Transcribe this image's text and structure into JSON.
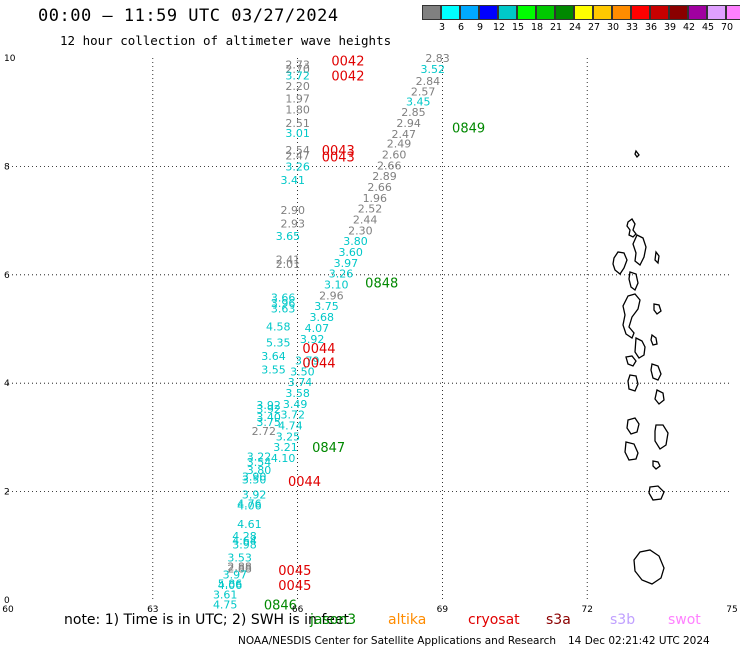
{
  "header": {
    "title": "00:00 — 11:59 UTC 03/27/2024",
    "subtitle": "12 hour collection of altimeter wave heights"
  },
  "color_scale": {
    "unit": "(ft)",
    "colors": [
      "#808080",
      "#00ffff",
      "#00aaff",
      "#0000ff",
      "#00c8c8",
      "#00ff00",
      "#00c800",
      "#008800",
      "#ffff00",
      "#ffc800",
      "#ff8c00",
      "#ff0000",
      "#c80000",
      "#8b0000",
      "#a000a0",
      "#e0a0ff",
      "#ff80ff",
      "#000000"
    ],
    "labels": [
      "3",
      "6",
      "9",
      "12",
      "15",
      "18",
      "21",
      "24",
      "27",
      "30",
      "33",
      "36",
      "39",
      "42",
      "45",
      "70"
    ]
  },
  "axes": {
    "x_labels": [
      "60",
      "63",
      "66",
      "69",
      "72",
      "75"
    ],
    "y_labels": [
      "0",
      "2",
      "4",
      "6",
      "8",
      "10"
    ]
  },
  "chart_data": {
    "type": "scatter",
    "x_range": [
      60,
      75
    ],
    "y_range": [
      0,
      10
    ],
    "grid": true,
    "wave_heights": [
      {
        "x": 66.0,
        "y": 9.88,
        "v": "2.73",
        "c": "#808080"
      },
      {
        "x": 66.0,
        "y": 9.8,
        "v": "2.70",
        "c": "#808080"
      },
      {
        "x": 66.0,
        "y": 9.68,
        "v": "3.72",
        "c": "#00c8c8"
      },
      {
        "x": 66.0,
        "y": 9.48,
        "v": "2.20",
        "c": "#808080"
      },
      {
        "x": 66.0,
        "y": 9.25,
        "v": "1.97",
        "c": "#808080"
      },
      {
        "x": 66.0,
        "y": 9.05,
        "v": "1.80",
        "c": "#808080"
      },
      {
        "x": 66.0,
        "y": 8.8,
        "v": "2.51",
        "c": "#808080"
      },
      {
        "x": 66.0,
        "y": 8.62,
        "v": "3.01",
        "c": "#00c8c8"
      },
      {
        "x": 66.0,
        "y": 8.3,
        "v": "2.54",
        "c": "#808080"
      },
      {
        "x": 66.0,
        "y": 8.2,
        "v": "2.47",
        "c": "#808080"
      },
      {
        "x": 66.0,
        "y": 8.0,
        "v": "3.26",
        "c": "#00c8c8"
      },
      {
        "x": 65.9,
        "y": 7.75,
        "v": "3.41",
        "c": "#00c8c8"
      },
      {
        "x": 65.9,
        "y": 7.2,
        "v": "2.90",
        "c": "#808080"
      },
      {
        "x": 65.9,
        "y": 6.95,
        "v": "2.93",
        "c": "#808080"
      },
      {
        "x": 65.8,
        "y": 6.72,
        "v": "3.65",
        "c": "#00c8c8"
      },
      {
        "x": 65.8,
        "y": 6.28,
        "v": "2.41",
        "c": "#808080"
      },
      {
        "x": 65.8,
        "y": 6.2,
        "v": "2.01",
        "c": "#808080"
      },
      {
        "x": 65.7,
        "y": 5.58,
        "v": "3.66",
        "c": "#00c8c8"
      },
      {
        "x": 65.7,
        "y": 5.48,
        "v": "3.96",
        "c": "#00c8c8"
      },
      {
        "x": 65.7,
        "y": 5.38,
        "v": "3.63",
        "c": "#00c8c8"
      },
      {
        "x": 65.6,
        "y": 5.05,
        "v": "4.58",
        "c": "#00c8c8"
      },
      {
        "x": 65.6,
        "y": 4.75,
        "v": "5.35",
        "c": "#00c8c8"
      },
      {
        "x": 65.5,
        "y": 4.5,
        "v": "3.64",
        "c": "#00c8c8"
      },
      {
        "x": 65.5,
        "y": 4.25,
        "v": "3.55",
        "c": "#00c8c8"
      },
      {
        "x": 65.4,
        "y": 3.6,
        "v": "3.92",
        "c": "#00c8c8"
      },
      {
        "x": 65.4,
        "y": 3.52,
        "v": "3.92",
        "c": "#00c8c8"
      },
      {
        "x": 65.4,
        "y": 3.38,
        "v": "3.40",
        "c": "#00c8c8"
      },
      {
        "x": 65.4,
        "y": 3.28,
        "v": "3.75",
        "c": "#00c8c8"
      },
      {
        "x": 65.3,
        "y": 3.12,
        "v": "2.72",
        "c": "#808080"
      },
      {
        "x": 65.2,
        "y": 2.65,
        "v": "3.22",
        "c": "#00c8c8"
      },
      {
        "x": 65.2,
        "y": 2.55,
        "v": "3.54",
        "c": "#00c8c8"
      },
      {
        "x": 65.2,
        "y": 2.4,
        "v": "3.80",
        "c": "#00c8c8"
      },
      {
        "x": 65.1,
        "y": 2.28,
        "v": "3.90",
        "c": "#00c8c8"
      },
      {
        "x": 65.1,
        "y": 2.22,
        "v": "3.50",
        "c": "#00c8c8"
      },
      {
        "x": 65.1,
        "y": 1.95,
        "v": "3.92",
        "c": "#00c8c8"
      },
      {
        "x": 65.0,
        "y": 1.78,
        "v": "4.76",
        "c": "#00c8c8"
      },
      {
        "x": 65.0,
        "y": 1.74,
        "v": "4.06",
        "c": "#00c8c8"
      },
      {
        "x": 65.0,
        "y": 1.4,
        "v": "4.61",
        "c": "#00c8c8"
      },
      {
        "x": 64.9,
        "y": 1.18,
        "v": "4.28",
        "c": "#00c8c8"
      },
      {
        "x": 64.9,
        "y": 1.1,
        "v": "4.64",
        "c": "#00c8c8"
      },
      {
        "x": 64.9,
        "y": 1.02,
        "v": "3.98",
        "c": "#00c8c8"
      },
      {
        "x": 64.8,
        "y": 0.78,
        "v": "3.53",
        "c": "#00c8c8"
      },
      {
        "x": 64.8,
        "y": 0.62,
        "v": "2.88",
        "c": "#808080"
      },
      {
        "x": 64.8,
        "y": 0.58,
        "v": "2.88",
        "c": "#808080"
      },
      {
        "x": 64.7,
        "y": 0.47,
        "v": "3.97",
        "c": "#00c8c8"
      },
      {
        "x": 64.6,
        "y": 0.3,
        "v": "5.86",
        "c": "#00c8c8"
      },
      {
        "x": 64.6,
        "y": 0.28,
        "v": "4.06",
        "c": "#00c8c8"
      },
      {
        "x": 64.5,
        "y": 0.1,
        "v": "3.61",
        "c": "#00c8c8"
      },
      {
        "x": 64.5,
        "y": -0.08,
        "v": "4.75",
        "c": "#00c8c8"
      },
      {
        "x": 68.9,
        "y": 10.0,
        "v": "2.83",
        "c": "#808080"
      },
      {
        "x": 68.8,
        "y": 9.8,
        "v": "3.52",
        "c": "#00c8c8"
      },
      {
        "x": 68.7,
        "y": 9.58,
        "v": "2.84",
        "c": "#808080"
      },
      {
        "x": 68.6,
        "y": 9.38,
        "v": "2.57",
        "c": "#808080"
      },
      {
        "x": 68.5,
        "y": 9.2,
        "v": "3.45",
        "c": "#00c8c8"
      },
      {
        "x": 68.4,
        "y": 9.0,
        "v": "2.85",
        "c": "#808080"
      },
      {
        "x": 68.3,
        "y": 8.8,
        "v": "2.94",
        "c": "#808080"
      },
      {
        "x": 68.2,
        "y": 8.6,
        "v": "2.47",
        "c": "#808080"
      },
      {
        "x": 68.1,
        "y": 8.42,
        "v": "2.49",
        "c": "#808080"
      },
      {
        "x": 68.0,
        "y": 8.22,
        "v": "2.60",
        "c": "#808080"
      },
      {
        "x": 67.9,
        "y": 8.02,
        "v": "2.66",
        "c": "#808080"
      },
      {
        "x": 67.8,
        "y": 7.82,
        "v": "2.89",
        "c": "#808080"
      },
      {
        "x": 67.7,
        "y": 7.62,
        "v": "2.66",
        "c": "#808080"
      },
      {
        "x": 67.6,
        "y": 7.42,
        "v": "1.96",
        "c": "#808080"
      },
      {
        "x": 67.5,
        "y": 7.22,
        "v": "2.52",
        "c": "#808080"
      },
      {
        "x": 67.4,
        "y": 7.02,
        "v": "2.44",
        "c": "#808080"
      },
      {
        "x": 67.3,
        "y": 6.82,
        "v": "2.30",
        "c": "#808080"
      },
      {
        "x": 67.2,
        "y": 6.62,
        "v": "3.80",
        "c": "#00c8c8"
      },
      {
        "x": 67.1,
        "y": 6.42,
        "v": "3.60",
        "c": "#00c8c8"
      },
      {
        "x": 67.0,
        "y": 6.22,
        "v": "3.97",
        "c": "#00c8c8"
      },
      {
        "x": 66.9,
        "y": 6.02,
        "v": "3.26",
        "c": "#00c8c8"
      },
      {
        "x": 66.8,
        "y": 5.82,
        "v": "3.10",
        "c": "#00c8c8"
      },
      {
        "x": 66.7,
        "y": 5.62,
        "v": "2.96",
        "c": "#808080"
      },
      {
        "x": 66.6,
        "y": 5.42,
        "v": "3.75",
        "c": "#00c8c8"
      },
      {
        "x": 66.5,
        "y": 5.22,
        "v": "3.68",
        "c": "#00c8c8"
      },
      {
        "x": 66.4,
        "y": 5.02,
        "v": "4.07",
        "c": "#00c8c8"
      },
      {
        "x": 66.3,
        "y": 4.82,
        "v": "3.92",
        "c": "#00c8c8"
      },
      {
        "x": 66.2,
        "y": 4.42,
        "v": "3.79",
        "c": "#00c8c8"
      },
      {
        "x": 66.1,
        "y": 4.22,
        "v": "3.50",
        "c": "#00c8c8"
      },
      {
        "x": 66.05,
        "y": 4.02,
        "v": "3.74",
        "c": "#00c8c8"
      },
      {
        "x": 66.0,
        "y": 3.82,
        "v": "3.58",
        "c": "#00c8c8"
      },
      {
        "x": 65.95,
        "y": 3.62,
        "v": "3.49",
        "c": "#00c8c8"
      },
      {
        "x": 65.9,
        "y": 3.42,
        "v": "3.72",
        "c": "#00c8c8"
      },
      {
        "x": 65.85,
        "y": 3.22,
        "v": "4.74",
        "c": "#00c8c8"
      },
      {
        "x": 65.8,
        "y": 3.02,
        "v": "3.25",
        "c": "#00c8c8"
      },
      {
        "x": 65.75,
        "y": 2.82,
        "v": "3.21",
        "c": "#00c8c8"
      },
      {
        "x": 65.7,
        "y": 2.62,
        "v": "4.10",
        "c": "#00c8c8"
      }
    ],
    "passes": [
      {
        "x": 66.7,
        "y": 9.95,
        "label": "0042",
        "c": "#e00000"
      },
      {
        "x": 66.7,
        "y": 9.68,
        "label": "0042",
        "c": "#e00000"
      },
      {
        "x": 69.2,
        "y": 8.72,
        "label": "0849",
        "c": "#008800"
      },
      {
        "x": 66.5,
        "y": 8.3,
        "label": "0043",
        "c": "#e00000"
      },
      {
        "x": 66.5,
        "y": 8.18,
        "label": "0043",
        "c": "#e00000"
      },
      {
        "x": 67.4,
        "y": 5.86,
        "label": "0848",
        "c": "#008800"
      },
      {
        "x": 66.1,
        "y": 4.65,
        "label": "0044",
        "c": "#e00000"
      },
      {
        "x": 66.1,
        "y": 4.38,
        "label": "0044",
        "c": "#e00000"
      },
      {
        "x": 66.3,
        "y": 2.82,
        "label": "0847",
        "c": "#008800"
      },
      {
        "x": 65.8,
        "y": 2.2,
        "label": "0044",
        "c": "#e00000"
      },
      {
        "x": 65.6,
        "y": 0.55,
        "label": "0045",
        "c": "#e00000"
      },
      {
        "x": 65.6,
        "y": 0.28,
        "label": "0045",
        "c": "#e00000"
      },
      {
        "x": 65.3,
        "y": -0.08,
        "label": "0846",
        "c": "#008800"
      }
    ]
  },
  "footer": {
    "note": "note: 1) Time is in UTC; 2) SWH is in feet",
    "satellites": [
      {
        "name": "jason3",
        "color": "#008800"
      },
      {
        "name": "altika",
        "color": "#ff8c00"
      },
      {
        "name": "cryosat",
        "color": "#e00000"
      },
      {
        "name": "s3a",
        "color": "#8b0000"
      },
      {
        "name": "s3b",
        "color": "#c0a0ff"
      },
      {
        "name": "swot",
        "color": "#ff80ff"
      }
    ],
    "credit": "NOAA/NESDIS Center for Satellite Applications and Research",
    "timestamp": "14 Dec 02:21:42 UTC 2024"
  }
}
